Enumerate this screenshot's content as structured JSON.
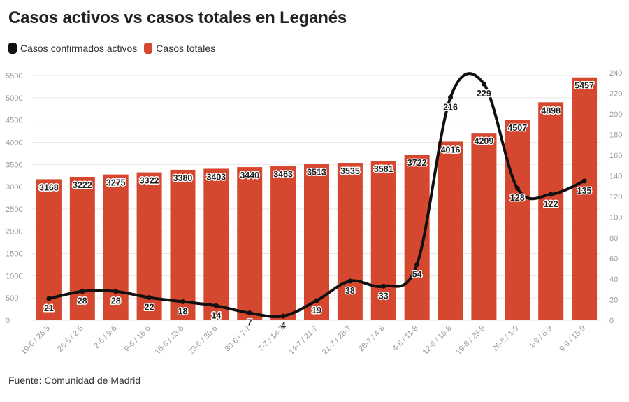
{
  "title": "Casos activos vs casos totales en Leganés",
  "source": "Fuente: Comunidad de Madrid",
  "colors": {
    "bars": "#d5482f",
    "line": "#111111",
    "grid": "#e6e6e6",
    "tick": "#999999"
  },
  "chart_data": {
    "type": "bar+line",
    "categories": [
      "19-5 / 26-5",
      "26-5 / 2-6",
      "2-6 / 9-6",
      "9-6 / 16-6",
      "16-6 / 23-6",
      "23-6 / 30-6",
      "30-6 / 7-7",
      "7-7 / 14-7",
      "14-7 / 21-7",
      "21-7 / 28-7",
      "28-7 / 4-8",
      "4-8 / 11-8",
      "12-8 / 18-8",
      "19-8 / 25-8",
      "26-8 / 1-9",
      "1-9 / 8-9",
      "9-9 / 15-9"
    ],
    "series": [
      {
        "name": "Casos totales",
        "type": "bar",
        "axis": "left",
        "color": "#d5482f",
        "values": [
          3168,
          3222,
          3275,
          3322,
          3380,
          3403,
          3440,
          3463,
          3513,
          3535,
          3581,
          3722,
          4016,
          4209,
          4507,
          4898,
          5457
        ]
      },
      {
        "name": "Casos confirmados activos",
        "type": "line",
        "axis": "right",
        "color": "#111111",
        "values": [
          21,
          28,
          28,
          22,
          18,
          14,
          7,
          4,
          19,
          38,
          33,
          54,
          216,
          229,
          128,
          122,
          135
        ]
      }
    ],
    "left_axis": {
      "min": 0,
      "max": 5500,
      "step": 500,
      "ticks": [
        "0",
        "500",
        "1000",
        "1500",
        "2000",
        "2500",
        "3000",
        "3500",
        "4000",
        "4500",
        "5000",
        "5500"
      ]
    },
    "right_axis": {
      "min": 0,
      "max": 240,
      "step": 20,
      "ticks": [
        "0",
        "20",
        "40",
        "60",
        "80",
        "100",
        "120",
        "140",
        "160",
        "180",
        "200",
        "220",
        "240"
      ]
    },
    "legend": {
      "position": "top-left",
      "items": [
        {
          "label": "Casos confirmados activos",
          "color": "#111111"
        },
        {
          "label": "Casos totales",
          "color": "#d5482f"
        }
      ]
    }
  }
}
